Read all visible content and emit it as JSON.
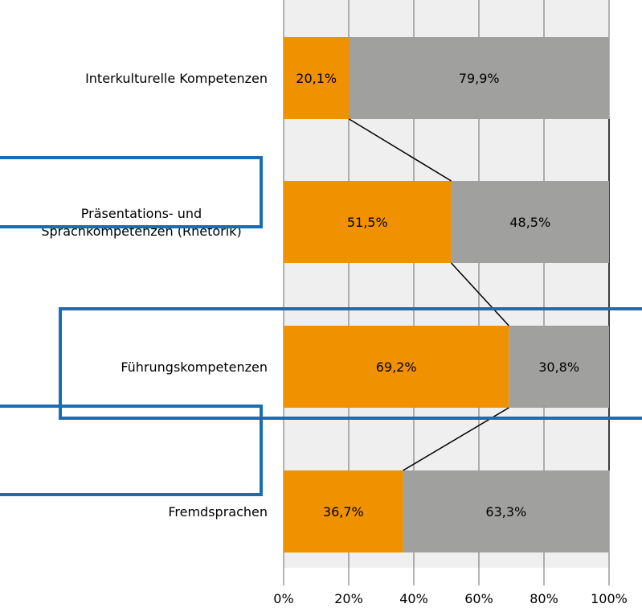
{
  "chart_data": {
    "type": "bar",
    "orientation": "horizontal",
    "stacked": true,
    "percent": true,
    "categories": [
      "Interkulturelle Kompetenzen",
      "Präsentations- und\nSprachkompetenzen (Rhetorik)",
      "Führungskompetenzen",
      "Fremdsprachen"
    ],
    "series": [
      {
        "values": [
          20.1,
          51.5,
          69.2,
          36.7
        ],
        "color": "#F09200"
      },
      {
        "values": [
          79.9,
          48.5,
          30.8,
          63.3
        ],
        "color": "#A0A09F"
      }
    ],
    "data_labels": [
      [
        "20,1%",
        "51,5%",
        "69,2%",
        "36,7%"
      ],
      [
        "79,9%",
        "48,5%",
        "30,8%",
        "63,3%"
      ]
    ],
    "xlim": [
      0,
      100
    ],
    "x_ticks": [
      "0%",
      "20%",
      "40%",
      "60%",
      "80%",
      "100%"
    ],
    "grid": true,
    "connector_lines": true,
    "highlight_boxes": [
      {
        "color": "#1A6DB5"
      },
      {
        "color": "#1A6DB5"
      },
      {
        "color": "#1A6DB5"
      }
    ]
  }
}
